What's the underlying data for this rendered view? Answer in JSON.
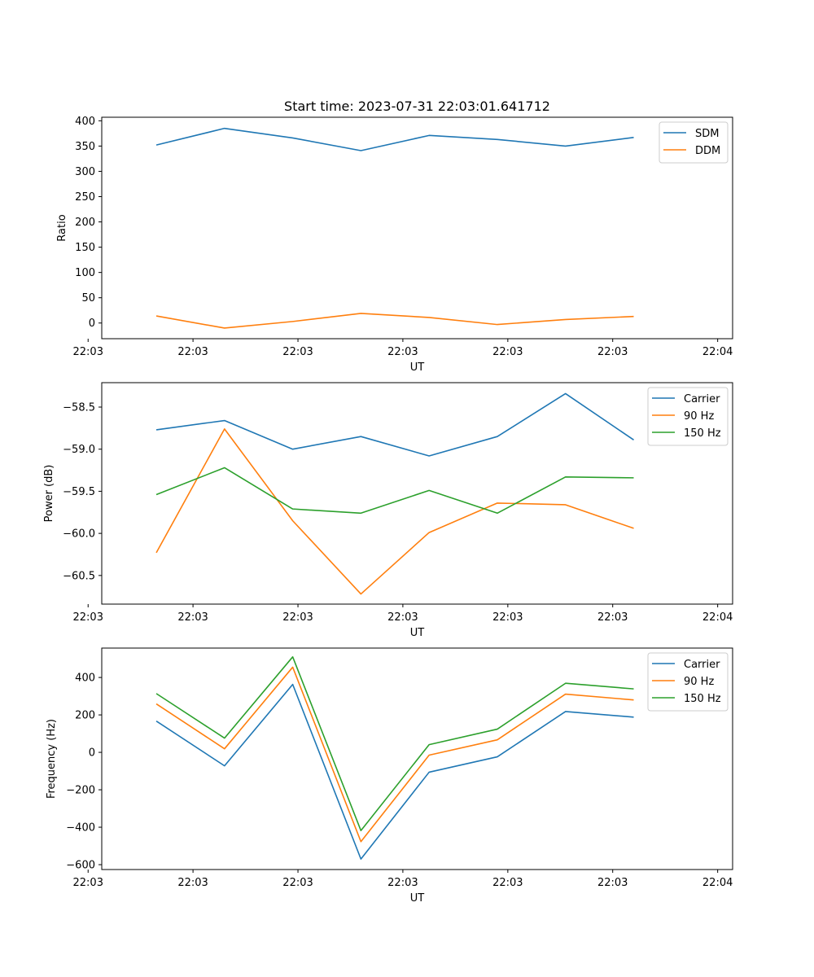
{
  "figure": {
    "title": "Start time: 2023-07-31 22:03:01.641712"
  },
  "chart_data": [
    {
      "type": "line",
      "xlabel": "UT",
      "ylabel": "Ratio",
      "x": [
        1,
        2,
        3,
        4,
        5,
        6,
        7,
        8
      ],
      "xlim": [
        0.2,
        9.45
      ],
      "xticks": [
        0,
        1.538,
        3.077,
        4.615,
        6.154,
        7.692,
        9.231
      ],
      "xtick_labels": [
        "22:03",
        "22:03",
        "22:03",
        "22:03",
        "22:03",
        "22:03",
        "22:04"
      ],
      "ylim": [
        -31,
        407
      ],
      "yticks": [
        0,
        50,
        100,
        150,
        200,
        250,
        300,
        350,
        400
      ],
      "ytick_labels": [
        "0",
        "50",
        "100",
        "150",
        "200",
        "250",
        "300",
        "350",
        "400"
      ],
      "legend": "upper right",
      "series": [
        {
          "name": "SDM",
          "color": "#1f77b4",
          "values": [
            352,
            385,
            366,
            341,
            371,
            363,
            350,
            367
          ]
        },
        {
          "name": "DDM",
          "color": "#ff7f0e",
          "values": [
            14,
            -10,
            3,
            19,
            11,
            -3,
            7,
            13
          ]
        }
      ]
    },
    {
      "type": "line",
      "xlabel": "UT",
      "ylabel": "Power (dB)",
      "x": [
        1,
        2,
        3,
        4,
        5,
        6,
        7,
        8
      ],
      "xlim": [
        0.2,
        9.45
      ],
      "xticks": [
        0,
        1.538,
        3.077,
        4.615,
        6.154,
        7.692,
        9.231
      ],
      "xtick_labels": [
        "22:03",
        "22:03",
        "22:03",
        "22:03",
        "22:03",
        "22:03",
        "22:04"
      ],
      "ylim": [
        -60.84,
        -58.21
      ],
      "yticks": [
        -60.5,
        -60.0,
        -59.5,
        -59.0,
        -58.5
      ],
      "ytick_labels": [
        "−60.5",
        "−60.0",
        "−59.5",
        "−59.0",
        "−58.5"
      ],
      "legend": "upper right",
      "series": [
        {
          "name": "Carrier",
          "color": "#1f77b4",
          "values": [
            -58.77,
            -58.66,
            -59.0,
            -58.85,
            -59.08,
            -58.85,
            -58.34,
            -58.89
          ]
        },
        {
          "name": "90 Hz",
          "color": "#ff7f0e",
          "values": [
            -60.23,
            -58.76,
            -59.85,
            -60.72,
            -59.99,
            -59.64,
            -59.66,
            -59.94
          ]
        },
        {
          "name": "150 Hz",
          "color": "#2ca02c",
          "values": [
            -59.54,
            -59.22,
            -59.71,
            -59.76,
            -59.49,
            -59.76,
            -59.33,
            -59.34
          ]
        }
      ]
    },
    {
      "type": "line",
      "xlabel": "UT",
      "ylabel": "Frequency (Hz)",
      "x": [
        1,
        2,
        3,
        4,
        5,
        6,
        7,
        8
      ],
      "xlim": [
        0.2,
        9.45
      ],
      "xticks": [
        0,
        1.538,
        3.077,
        4.615,
        6.154,
        7.692,
        9.231
      ],
      "xtick_labels": [
        "22:03",
        "22:03",
        "22:03",
        "22:03",
        "22:03",
        "22:03",
        "22:04"
      ],
      "ylim": [
        -626,
        557
      ],
      "yticks": [
        -600,
        -400,
        -200,
        0,
        200,
        400
      ],
      "ytick_labels": [
        "−600",
        "−400",
        "−200",
        "0",
        "200",
        "400"
      ],
      "legend": "upper right",
      "series": [
        {
          "name": "Carrier",
          "color": "#1f77b4",
          "values": [
            167,
            -72,
            363,
            -570,
            -106,
            -24,
            218,
            188
          ]
        },
        {
          "name": "90 Hz",
          "color": "#ff7f0e",
          "values": [
            259,
            19,
            455,
            -477,
            -15,
            67,
            311,
            280
          ]
        },
        {
          "name": "150 Hz",
          "color": "#2ca02c",
          "values": [
            314,
            76,
            510,
            -418,
            41,
            124,
            369,
            339
          ]
        }
      ]
    }
  ]
}
